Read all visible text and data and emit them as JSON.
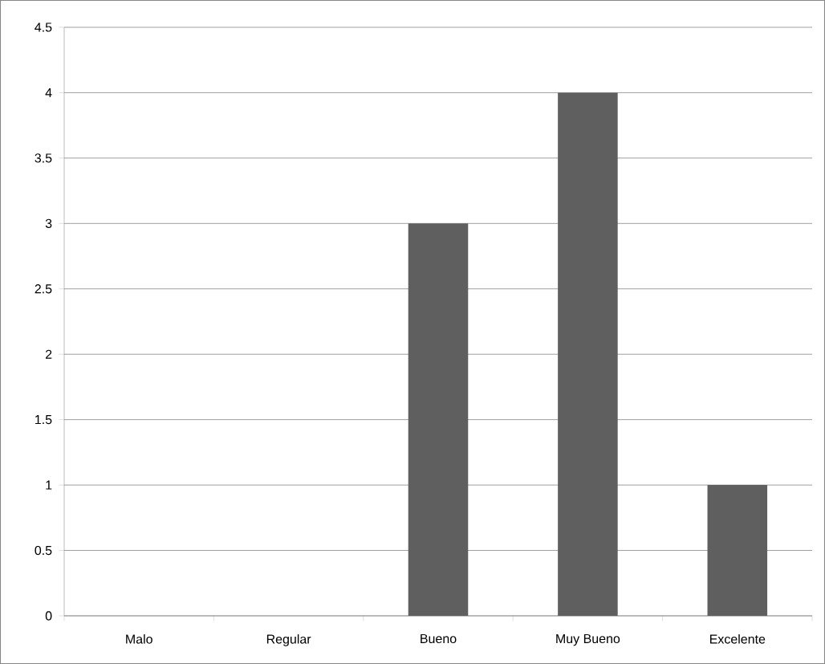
{
  "chart_data": {
    "type": "bar",
    "categories": [
      "Malo",
      "Regular",
      "Bueno",
      "Muy Bueno",
      "Excelente"
    ],
    "values": [
      0,
      0,
      3,
      4,
      1
    ],
    "color": "#5f5f5f",
    "ylim": [
      0,
      4.5
    ],
    "yticks": [
      0,
      0.5,
      1,
      1.5,
      2,
      2.5,
      3,
      3.5,
      4,
      4.5
    ],
    "grid": "y"
  }
}
